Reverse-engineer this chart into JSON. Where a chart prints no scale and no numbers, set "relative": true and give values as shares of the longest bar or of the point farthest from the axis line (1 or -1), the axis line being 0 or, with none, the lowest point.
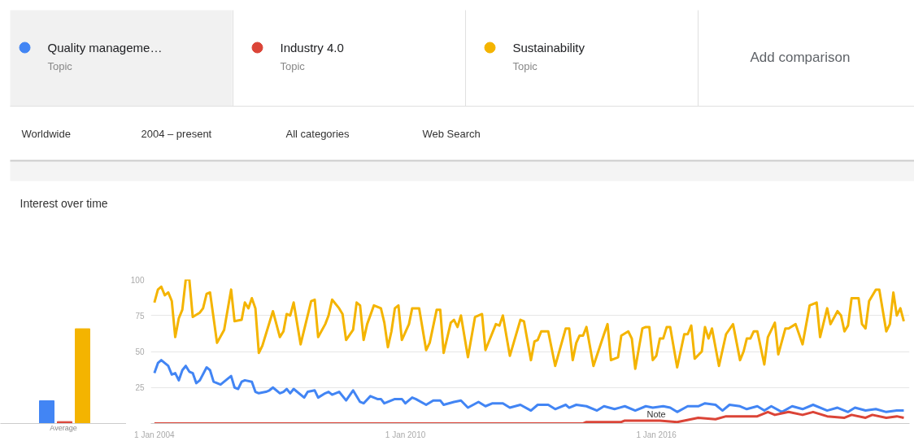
{
  "chart_data": [
    {
      "type": "bar",
      "relative": true,
      "categories": [
        null
      ],
      "xlabel": "Average",
      "series": [
        {
          "color": "#4285f4",
          "values": [
            0.24
          ]
        },
        {
          "color": "#db4437",
          "values": [
            0.02
          ]
        },
        {
          "color": "#f4b400",
          "values": [
            1
          ]
        }
      ]
    },
    {
      "type": "line",
      "title": "Interest over time",
      "legend": "top",
      "grid": "y",
      "line_style": "solid",
      "xlim": [
        "2003-12-01",
        "2022-01-20"
      ],
      "ylim": [
        0,
        100
      ],
      "xticks": [
        {
          "value": "2004-01-01",
          "label": "1 Jan 2004"
        },
        {
          "value": "2010-01-01",
          "label": "1 Jan 2010"
        },
        {
          "value": "2016-01-01",
          "label": "1 Jan 2016"
        }
      ],
      "yticks": [
        {
          "value": 0,
          "label": null
        },
        25,
        50,
        75,
        100
      ],
      "annotations": [
        "Topic",
        "Topic",
        "Topic",
        "Add comparison",
        "Worldwide",
        "2004 – present",
        "All categories",
        "Web Search",
        {
          "text": "Note",
          "x": "2016-01",
          "y": 10
        }
      ],
      "series": [
        {
          "name": "Quality manageme…",
          "color": "#4285f4",
          "x": [
            "2004-01",
            "2004-02",
            "2004-03",
            "2004-05",
            "2004-06",
            "2004-07",
            "2004-08",
            "2004-09",
            "2004-10",
            "2004-11",
            "2004-12",
            "2005-01",
            "2005-02",
            "2005-04",
            "2005-05",
            "2005-06",
            "2005-08",
            "2005-10",
            "2005-11",
            "2005-12",
            "2006-01",
            "2006-02",
            "2006-03",
            "2006-05",
            "2006-06",
            "2006-07",
            "2006-09",
            "2006-10",
            "2006-11",
            "2007-01",
            "2007-02",
            "2007-03",
            "2007-04",
            "2007-05",
            "2007-08",
            "2007-09",
            "2007-11",
            "2007-12",
            "2008-02",
            "2008-03",
            "2008-04",
            "2008-06",
            "2008-08",
            "2008-10",
            "2008-12",
            "2009-01",
            "2009-03",
            "2009-05",
            "2009-06",
            "2009-07",
            "2009-09",
            "2009-10",
            "2009-12",
            "2010-01",
            "2010-03",
            "2010-04",
            "2010-07",
            "2010-09",
            "2010-11",
            "2010-12",
            "2011-03",
            "2011-05",
            "2011-07",
            "2011-10",
            "2011-12",
            "2012-02",
            "2012-05",
            "2012-07",
            "2012-10",
            "2013-01",
            "2013-03",
            "2013-06",
            "2013-08",
            "2013-11",
            "2013-12",
            "2014-02",
            "2014-05",
            "2014-08",
            "2014-10",
            "2015-01",
            "2015-04",
            "2015-07",
            "2015-10",
            "2015-12",
            "2016-03",
            "2016-05",
            "2016-07",
            "2016-10",
            "2017-01",
            "2017-03",
            "2017-06",
            "2017-08",
            "2017-10",
            "2018-01",
            "2018-03",
            "2018-06",
            "2018-08",
            "2018-10",
            "2019-01",
            "2019-04",
            "2019-07",
            "2019-10",
            "2020-02",
            "2020-05",
            "2020-08",
            "2020-10",
            "2021-01",
            "2021-04",
            "2021-07",
            "2021-10",
            "2021-12"
          ],
          "values": [
            35,
            42,
            44,
            40,
            34,
            35,
            30,
            37,
            40,
            36,
            35,
            28,
            30,
            39,
            37,
            29,
            27,
            31,
            33,
            25,
            24,
            29,
            30,
            29,
            22,
            21,
            22,
            23,
            25,
            21,
            22,
            24,
            21,
            24,
            18,
            22,
            23,
            18,
            21,
            22,
            20,
            22,
            16,
            23,
            15,
            14,
            19,
            17,
            17,
            14,
            16,
            17,
            17,
            14,
            18,
            17,
            13,
            16,
            16,
            13,
            15,
            16,
            11,
            15,
            12,
            14,
            14,
            11,
            13,
            9,
            13,
            13,
            10,
            13,
            11,
            13,
            12,
            9,
            12,
            10,
            12,
            9,
            12,
            11,
            12,
            11,
            8,
            12,
            12,
            14,
            13,
            9,
            13,
            12,
            10,
            12,
            9,
            12,
            8,
            12,
            10,
            13,
            9,
            11,
            8,
            11,
            9,
            10,
            8,
            9,
            9
          ]
        },
        {
          "name": "Industry 4.0",
          "color": "#db4437",
          "x": [
            "2004-01",
            "2014-04",
            "2014-05",
            "2015-03",
            "2015-04",
            "2016-02",
            "2016-07",
            "2017-01",
            "2017-06",
            "2017-09",
            "2018-06",
            "2018-09",
            "2018-11",
            "2019-03",
            "2019-07",
            "2019-10",
            "2020-02",
            "2020-07",
            "2020-09",
            "2021-01",
            "2021-03",
            "2021-07",
            "2021-10",
            "2021-12"
          ],
          "values": [
            0,
            0,
            1,
            1,
            2,
            2,
            1,
            4,
            3,
            5,
            5,
            8,
            6,
            8,
            6,
            8,
            5,
            4,
            6,
            4,
            6,
            4,
            5,
            4
          ]
        },
        {
          "name": "Sustainability",
          "color": "#f4b400",
          "x": [
            "2004-01",
            "2004-02",
            "2004-03",
            "2004-04",
            "2004-05",
            "2004-06",
            "2004-07",
            "2004-08",
            "2004-09",
            "2004-10",
            "2004-11",
            "2004-12",
            "2005-02",
            "2005-03",
            "2005-04",
            "2005-05",
            "2005-07",
            "2005-09",
            "2005-11",
            "2005-12",
            "2006-02",
            "2006-03",
            "2006-04",
            "2006-05",
            "2006-06",
            "2006-07",
            "2006-08",
            "2006-11",
            "2007-01",
            "2007-02",
            "2007-03",
            "2007-04",
            "2007-05",
            "2007-07",
            "2007-10",
            "2007-11",
            "2007-12",
            "2008-02",
            "2008-03",
            "2008-04",
            "2008-06",
            "2008-07",
            "2008-08",
            "2008-10",
            "2008-11",
            "2008-12",
            "2009-01",
            "2009-02",
            "2009-04",
            "2009-06",
            "2009-07",
            "2009-08",
            "2009-09",
            "2009-10",
            "2009-11",
            "2009-12",
            "2010-02",
            "2010-03",
            "2010-05",
            "2010-07",
            "2010-08",
            "2010-10",
            "2010-11",
            "2010-12",
            "2011-02",
            "2011-03",
            "2011-04",
            "2011-05",
            "2011-07",
            "2011-09",
            "2011-11",
            "2011-12",
            "2012-03",
            "2012-04",
            "2012-05",
            "2012-07",
            "2012-10",
            "2012-11",
            "2013-01",
            "2013-02",
            "2013-03",
            "2013-04",
            "2013-06",
            "2013-08",
            "2013-11",
            "2013-12",
            "2014-01",
            "2014-02",
            "2014-03",
            "2014-04",
            "2014-05",
            "2014-07",
            "2014-10",
            "2014-11",
            "2014-12",
            "2015-02",
            "2015-03",
            "2015-05",
            "2015-06",
            "2015-07",
            "2015-09",
            "2015-10",
            "2015-11",
            "2015-12",
            "2016-01",
            "2016-02",
            "2016-03",
            "2016-04",
            "2016-05",
            "2016-07",
            "2016-09",
            "2016-10",
            "2016-11",
            "2016-12",
            "2017-02",
            "2017-03",
            "2017-04",
            "2017-05",
            "2017-07",
            "2017-09",
            "2017-11",
            "2018-01",
            "2018-02",
            "2018-03",
            "2018-04",
            "2018-05",
            "2018-06",
            "2018-08",
            "2018-09",
            "2018-11",
            "2018-12",
            "2019-02",
            "2019-03",
            "2019-05",
            "2019-07",
            "2019-09",
            "2019-11",
            "2019-12",
            "2020-02",
            "2020-03",
            "2020-05",
            "2020-06",
            "2020-07",
            "2020-08",
            "2020-09",
            "2020-11",
            "2020-12",
            "2021-01",
            "2021-02",
            "2021-04",
            "2021-05",
            "2021-07",
            "2021-08",
            "2021-09",
            "2021-10",
            "2021-11",
            "2021-12"
          ],
          "values": [
            84,
            93,
            95,
            89,
            91,
            85,
            60,
            73,
            79,
            100,
            100,
            74,
            77,
            80,
            90,
            91,
            56,
            65,
            93,
            71,
            72,
            84,
            80,
            87,
            80,
            49,
            54,
            78,
            60,
            64,
            76,
            75,
            84,
            55,
            85,
            86,
            60,
            69,
            75,
            86,
            80,
            76,
            58,
            65,
            84,
            82,
            58,
            69,
            82,
            80,
            70,
            53,
            64,
            80,
            82,
            58,
            69,
            80,
            80,
            51,
            56,
            79,
            79,
            49,
            70,
            72,
            67,
            75,
            46,
            74,
            76,
            51,
            69,
            68,
            75,
            47,
            72,
            71,
            44,
            57,
            58,
            64,
            64,
            40,
            66,
            66,
            44,
            56,
            61,
            61,
            67,
            40,
            62,
            69,
            44,
            46,
            61,
            64,
            59,
            38,
            66,
            67,
            67,
            44,
            47,
            59,
            59,
            67,
            67,
            39,
            62,
            62,
            68,
            45,
            50,
            67,
            59,
            66,
            40,
            62,
            69,
            44,
            50,
            59,
            59,
            64,
            64,
            41,
            60,
            70,
            48,
            66,
            66,
            69,
            55,
            82,
            84,
            60,
            80,
            69,
            78,
            75,
            64,
            68,
            87,
            87,
            69,
            66,
            85,
            93,
            93,
            64,
            69,
            91,
            75,
            80,
            71
          ]
        }
      ]
    }
  ]
}
